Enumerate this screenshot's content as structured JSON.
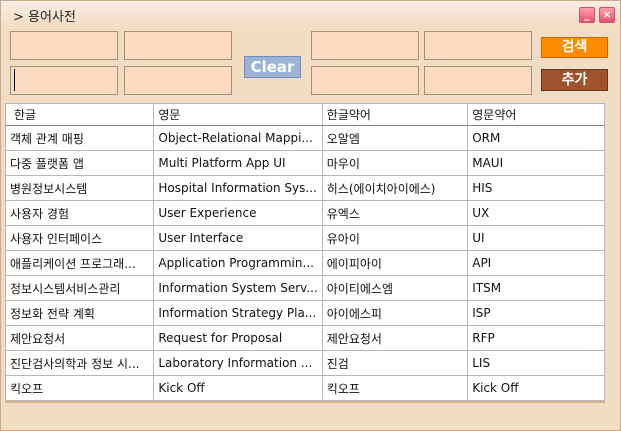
{
  "window": {
    "title": "> 용어사전",
    "minimize_label": "_",
    "close_label": "×"
  },
  "form": {
    "fields": [
      {
        "name": "korean-input",
        "value": ""
      },
      {
        "name": "english-input",
        "value": ""
      },
      {
        "name": "korean-abbr-input",
        "value": ""
      },
      {
        "name": "english-abbr-input",
        "value": ""
      },
      {
        "name": "korean-input-2",
        "value": ""
      },
      {
        "name": "english-input-2",
        "value": ""
      },
      {
        "name": "korean-abbr-input-2",
        "value": ""
      },
      {
        "name": "english-abbr-input-2",
        "value": ""
      }
    ],
    "clear_label": "Clear",
    "search_label": "검색",
    "add_label": "추가"
  },
  "grid": {
    "headers": [
      "한글",
      "영문",
      "한글약어",
      "영문약어"
    ],
    "rows": [
      [
        "객체 관계 매핑",
        "Object-Relational Mappi...",
        "오알엠",
        "ORM"
      ],
      [
        "다중 플랫폼 앱",
        "Multi Platform App UI",
        "마우이",
        "MAUI"
      ],
      [
        "병원정보시스템",
        "Hospital Information Sys...",
        "히스(에이치아이에스)",
        "HIS"
      ],
      [
        "사용자 경험",
        "User Experience",
        "유엑스",
        "UX"
      ],
      [
        "사용자 인터페이스",
        "User Interface",
        "유아이",
        "UI"
      ],
      [
        "애플리케이션 프로그래...",
        "Application Programmin...",
        "에이피아이",
        "API"
      ],
      [
        "정보시스템서비스관리",
        "Information System Serv...",
        "아이티에스엠",
        "ITSM"
      ],
      [
        "정보화 전략 계획",
        "Information Strategy Pla...",
        "아이에스피",
        "ISP"
      ],
      [
        "제안요청서",
        "Request for Proposal",
        "제안요청서",
        "RFP"
      ],
      [
        "진단검사의학과 정보 시...",
        "Laboratory Information ...",
        "진검",
        "LIS"
      ],
      [
        "킥오프",
        "Kick Off",
        "킥오프",
        "Kick Off"
      ]
    ]
  },
  "colors": {
    "background": "#f3dcc4",
    "field": "#fbdcc0",
    "search_button": "#ff8c00",
    "add_button": "#a0522d",
    "clear_button": "#9bb4d4"
  }
}
